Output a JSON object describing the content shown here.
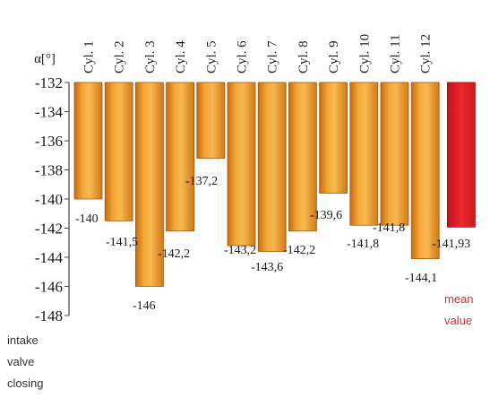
{
  "chart_data": {
    "type": "bar",
    "ylabel": "α[°]",
    "xlabel_lines": [
      "intake",
      "valve",
      "closing"
    ],
    "categories": [
      "Cyl. 1",
      "Cyl. 2",
      "Cyl. 3",
      "Cyl. 4",
      "Cyl. 5",
      "Cyl. 6",
      "Cyl. 7",
      "Cyl. 8",
      "Cyl. 9",
      "Cyl. 10",
      "Cyl. 11",
      "Cyl. 12",
      ""
    ],
    "values": [
      -140,
      -141.5,
      -146,
      -142.2,
      -137.2,
      -143.2,
      -143.6,
      -142.2,
      -139.6,
      -141.8,
      -141.8,
      -144.1,
      -141.93
    ],
    "data_labels": [
      "-140",
      "-141,5",
      "-146",
      "-142,2",
      "-137,2",
      "-143,2",
      "-143,6",
      "-142,2",
      "-139,6",
      "-141,8",
      "-141,8",
      "-144,1",
      "-141,93"
    ],
    "mean_label_lines": [
      "mean",
      "value"
    ],
    "yticks": [
      "-132",
      "-134",
      "-136",
      "-138",
      "-140",
      "-142",
      "-144",
      "-146",
      "-148"
    ],
    "ylim": [
      -148,
      -132
    ],
    "colors": {
      "bar": "#f0a030",
      "mean_bar": "#e8202a",
      "axis": "#444444"
    }
  }
}
